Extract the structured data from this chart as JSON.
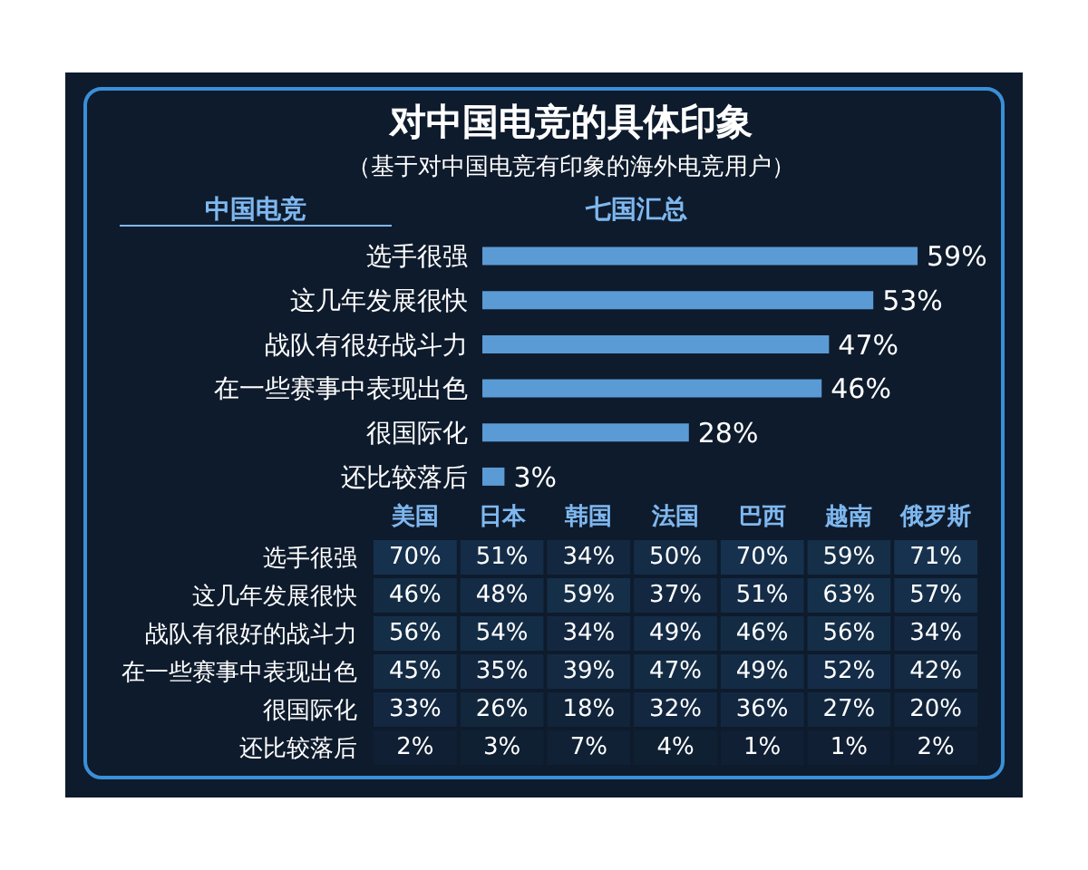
{
  "chart_data": [
    {
      "type": "bar",
      "orientation": "horizontal",
      "title": "对中国电竞的具体印象",
      "subtitle": "（基于对中国电竞有印象的海外电竞用户）",
      "ylabel": "中国电竞",
      "xlabel": "七国汇总",
      "categories": [
        "选手很强",
        "这几年发展很快",
        "战队有很好战斗力",
        "在一些赛事中表现出色",
        "很国际化",
        "还比较落后"
      ],
      "values": [
        59,
        53,
        47,
        46,
        28,
        3
      ],
      "value_labels": [
        "59%",
        "53%",
        "47%",
        "46%",
        "28%",
        "3%"
      ],
      "color": "#5b9bd5",
      "tick_labels": "y",
      "grid": false,
      "legend": false
    },
    {
      "type": "heatmap",
      "categories": [
        "美国",
        "日本",
        "韩国",
        "法国",
        "巴西",
        "越南",
        "俄罗斯"
      ],
      "y_categories": [
        "选手很强",
        "这几年发展很快",
        "战队有很好的战斗力",
        "在一些赛事中表现出色",
        "很国际化",
        "还比较落后"
      ],
      "cells": [
        [
          70,
          51,
          34,
          50,
          70,
          59,
          71
        ],
        [
          46,
          48,
          59,
          37,
          51,
          63,
          57
        ],
        [
          56,
          54,
          34,
          49,
          46,
          56,
          34
        ],
        [
          45,
          35,
          39,
          47,
          49,
          52,
          42
        ],
        [
          33,
          26,
          18,
          32,
          36,
          27,
          20
        ],
        [
          2,
          3,
          7,
          4,
          1,
          1,
          2
        ]
      ],
      "cell_labels": [
        [
          "70%",
          "51%",
          "34%",
          "50%",
          "70%",
          "59%",
          "71%"
        ],
        [
          "46%",
          "48%",
          "59%",
          "37%",
          "51%",
          "63%",
          "57%"
        ],
        [
          "56%",
          "54%",
          "34%",
          "49%",
          "46%",
          "56%",
          "34%"
        ],
        [
          "45%",
          "35%",
          "39%",
          "47%",
          "49%",
          "52%",
          "42%"
        ],
        [
          "33%",
          "26%",
          "18%",
          "32%",
          "36%",
          "27%",
          "20%"
        ],
        [
          "2%",
          "3%",
          "7%",
          "4%",
          "1%",
          "1%",
          "2%"
        ]
      ]
    }
  ]
}
